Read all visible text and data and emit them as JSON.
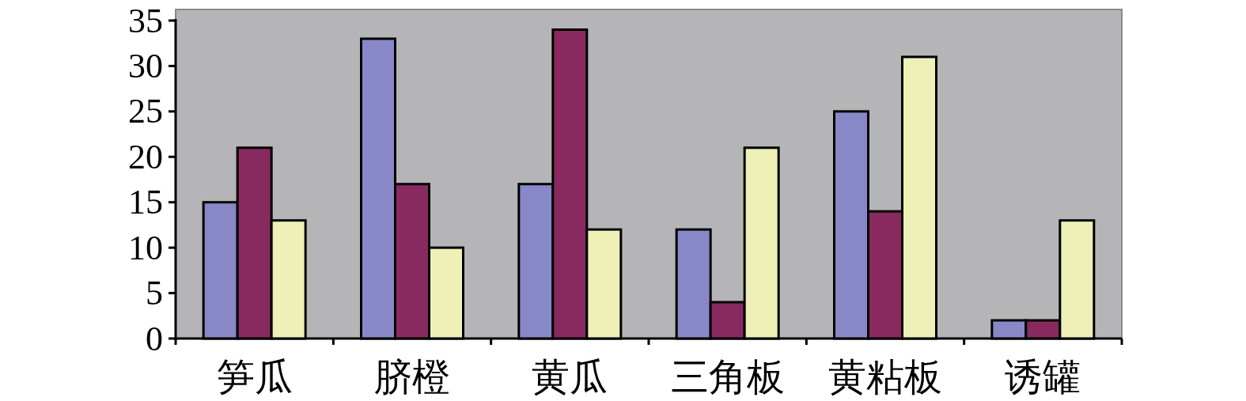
{
  "chart_data": {
    "type": "bar",
    "categories": [
      "笋瓜",
      "脐橙",
      "黄瓜",
      "三角板",
      "黄粘板",
      "诱罐"
    ],
    "series": [
      {
        "color": "#8888c8",
        "values": [
          15,
          33,
          17,
          12,
          25,
          2
        ]
      },
      {
        "color": "#882a60",
        "values": [
          21,
          17,
          34,
          4,
          14,
          2
        ]
      },
      {
        "color": "#eef0b8",
        "values": [
          13,
          10,
          12,
          21,
          31,
          13
        ]
      }
    ],
    "ylim": [
      0,
      35
    ],
    "yticks": [
      0,
      5,
      10,
      15,
      20,
      25,
      30,
      35
    ]
  }
}
